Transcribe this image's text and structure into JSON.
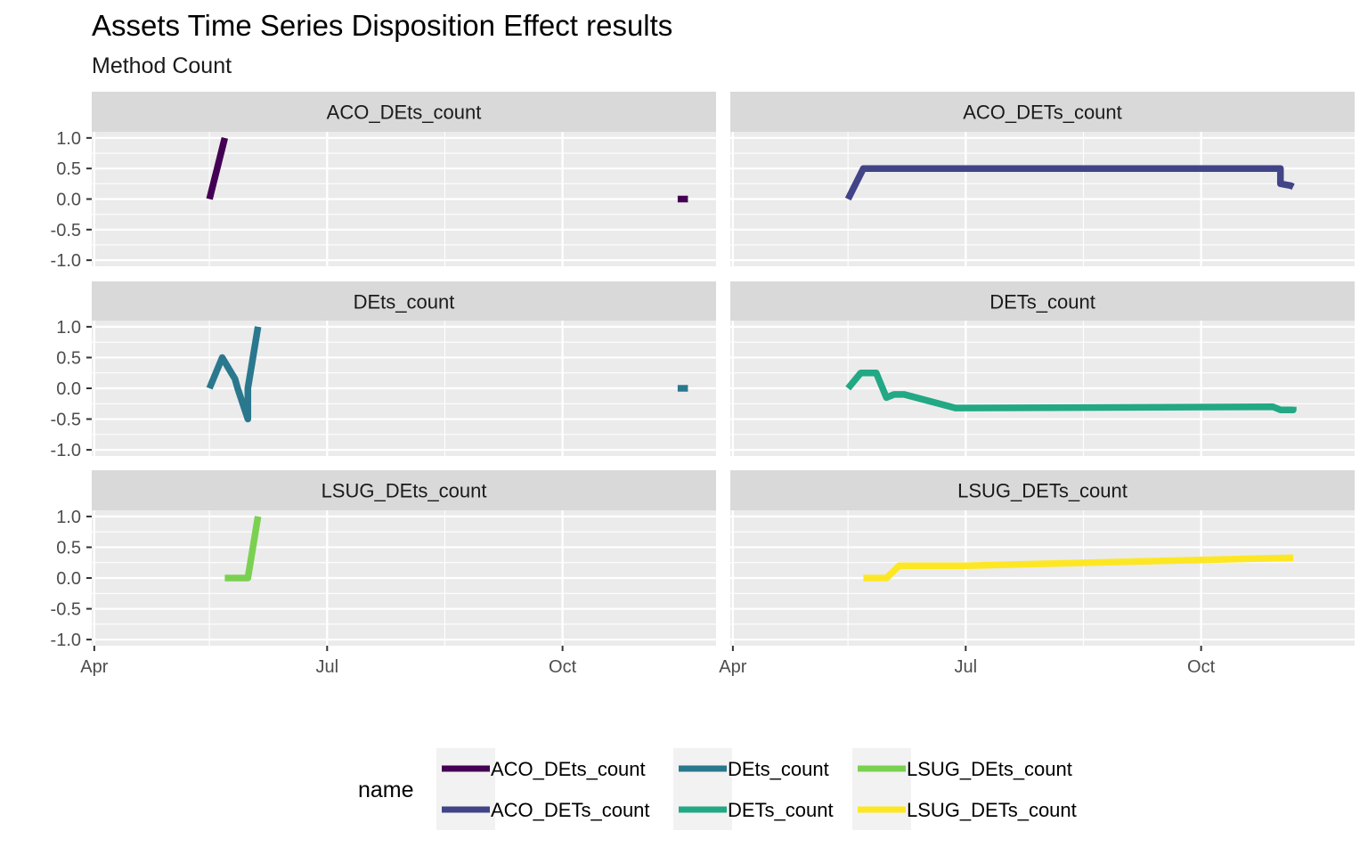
{
  "chart_data": {
    "type": "line",
    "title": "Assets Time Series Disposition Effect results",
    "subtitle": "Method Count",
    "ylim": [
      -1.1,
      1.1
    ],
    "y_ticks": [
      1.0,
      0.5,
      0.0,
      -0.5,
      -1.0
    ],
    "y_tick_labels": [
      "1.0",
      "0.5",
      "0.0",
      "-0.5",
      "-1.0"
    ],
    "x_range": [
      "2020-03-31",
      "2020-11-30"
    ],
    "x_ticks": [
      "2020-04-01",
      "2020-07-01",
      "2020-10-01"
    ],
    "x_tick_labels": [
      "Apr",
      "Jul",
      "Oct"
    ],
    "x_minor_ticks": [
      "2020-05-16",
      "2020-08-16"
    ],
    "grid": true,
    "legend": {
      "title": "name",
      "position": "bottom",
      "entries": [
        "ACO_DEts_count",
        "ACO_DETs_count",
        "DEts_count",
        "DETs_count",
        "LSUG_DEts_count",
        "LSUG_DETs_count"
      ]
    },
    "panels": [
      {
        "strip": "ACO_DEts_count",
        "color": "#440154",
        "segments": [
          [
            [
              "2020-05-16",
              0.0
            ],
            [
              "2020-05-22",
              1.0
            ]
          ],
          [
            [
              "2020-11-15",
              0.0
            ],
            [
              "2020-11-19",
              0.0
            ]
          ]
        ]
      },
      {
        "strip": "ACO_DETs_count",
        "color": "#414487",
        "segments": [
          [
            [
              "2020-05-16",
              0.0
            ],
            [
              "2020-05-22",
              0.5
            ],
            [
              "2020-06-01",
              0.5
            ],
            [
              "2020-11-01",
              0.5
            ],
            [
              "2020-11-01",
              0.25
            ],
            [
              "2020-11-05",
              0.22
            ],
            [
              "2020-11-06",
              0.2
            ]
          ]
        ]
      },
      {
        "strip": "DEts_count",
        "color": "#2A788E",
        "segments": [
          [
            [
              "2020-05-16",
              0.0
            ],
            [
              "2020-05-21",
              0.5
            ],
            [
              "2020-05-26",
              0.15
            ],
            [
              "2020-05-27",
              0.0
            ],
            [
              "2020-05-31",
              -0.5
            ],
            [
              "2020-05-31",
              0.0
            ],
            [
              "2020-06-04",
              1.0
            ]
          ],
          [
            [
              "2020-11-15",
              0.0
            ],
            [
              "2020-11-19",
              0.0
            ]
          ]
        ]
      },
      {
        "strip": "DETs_count",
        "color": "#22A884",
        "segments": [
          [
            [
              "2020-05-16",
              0.0
            ],
            [
              "2020-05-21",
              0.25
            ],
            [
              "2020-05-27",
              0.25
            ],
            [
              "2020-05-31",
              -0.15
            ],
            [
              "2020-06-03",
              -0.1
            ],
            [
              "2020-06-07",
              -0.1
            ],
            [
              "2020-06-27",
              -0.32
            ],
            [
              "2020-10-29",
              -0.3
            ],
            [
              "2020-11-01",
              -0.35
            ],
            [
              "2020-11-06",
              -0.35
            ],
            [
              "2020-11-06",
              -0.3
            ]
          ]
        ]
      },
      {
        "strip": "LSUG_DEts_count",
        "color": "#7AD151",
        "segments": [
          [
            [
              "2020-05-22",
              0.0
            ],
            [
              "2020-05-31",
              0.0
            ],
            [
              "2020-06-04",
              1.0
            ]
          ]
        ]
      },
      {
        "strip": "LSUG_DETs_count",
        "color": "#FDE725",
        "segments": [
          [
            [
              "2020-05-22",
              0.0
            ],
            [
              "2020-05-31",
              0.0
            ],
            [
              "2020-06-05",
              0.2
            ],
            [
              "2020-07-01",
              0.2
            ],
            [
              "2020-11-06",
              0.33
            ]
          ]
        ]
      }
    ]
  }
}
